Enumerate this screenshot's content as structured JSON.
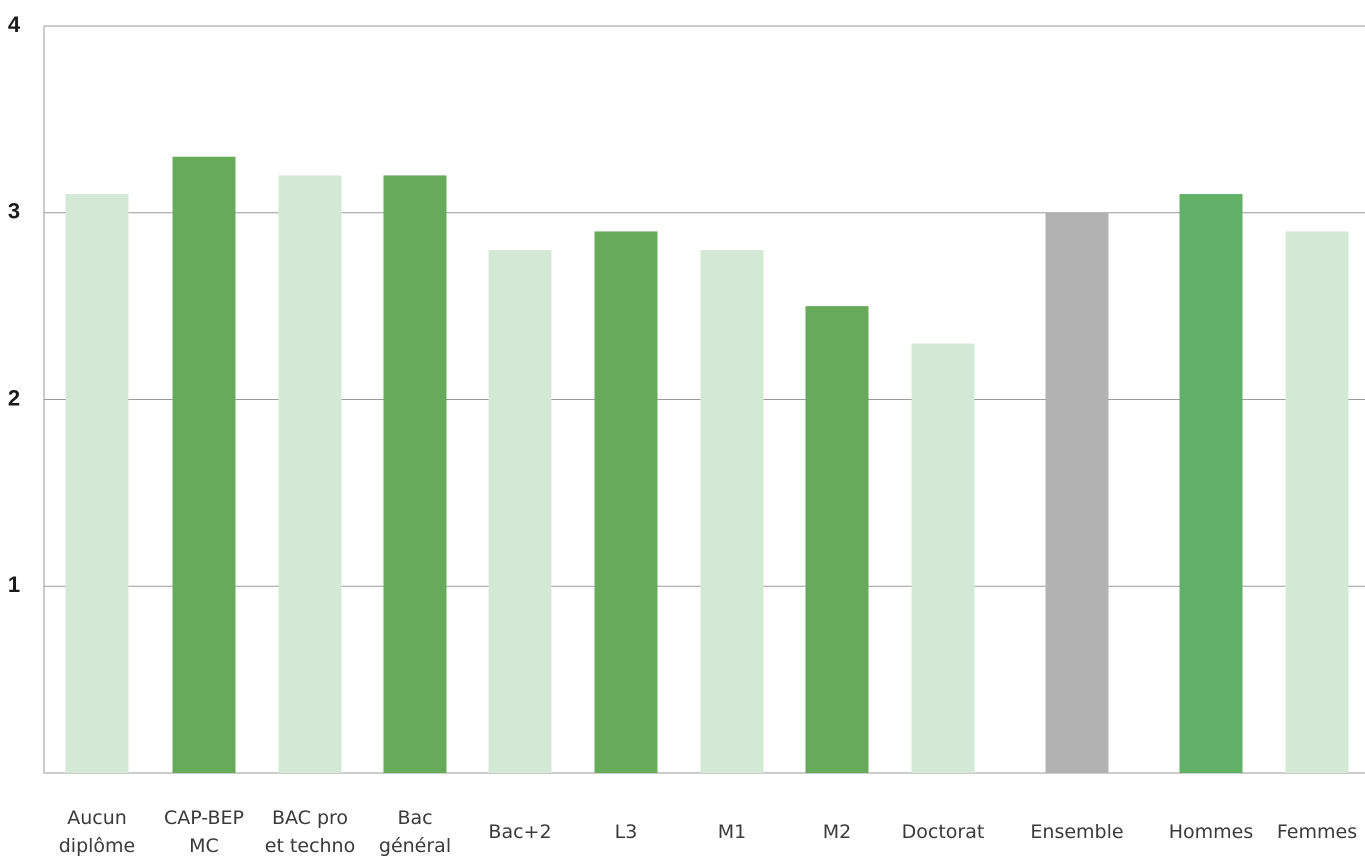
{
  "chart_data": {
    "type": "bar",
    "categories": [
      [
        "Aucun",
        "diplôme"
      ],
      [
        "CAP-BEP",
        "MC"
      ],
      [
        "BAC pro",
        "et techno"
      ],
      [
        "Bac",
        "général"
      ],
      [
        "Bac+2"
      ],
      [
        "L3"
      ],
      [
        "M1"
      ],
      [
        "M2"
      ],
      [
        "Doctorat"
      ],
      [
        "Ensemble"
      ],
      [
        "Hommes"
      ],
      [
        "Femmes"
      ]
    ],
    "values": [
      3.1,
      3.3,
      3.2,
      3.2,
      2.8,
      2.9,
      2.8,
      2.5,
      2.3,
      3.0,
      3.1,
      2.9
    ],
    "bar_colors": [
      "#d3e9d6",
      "#67ab5a",
      "#d3e9d6",
      "#67ab5a",
      "#d3e9d6",
      "#67ab5a",
      "#d3e9d6",
      "#67ab5a",
      "#d3e9d6",
      "#b2b2b2",
      "#62b068",
      "#d3e9d6"
    ],
    "y_ticks": [
      "1",
      "2",
      "3",
      "4"
    ],
    "ylim": [
      0,
      4
    ],
    "grid": true,
    "title": "",
    "xlabel": "",
    "ylabel": ""
  }
}
